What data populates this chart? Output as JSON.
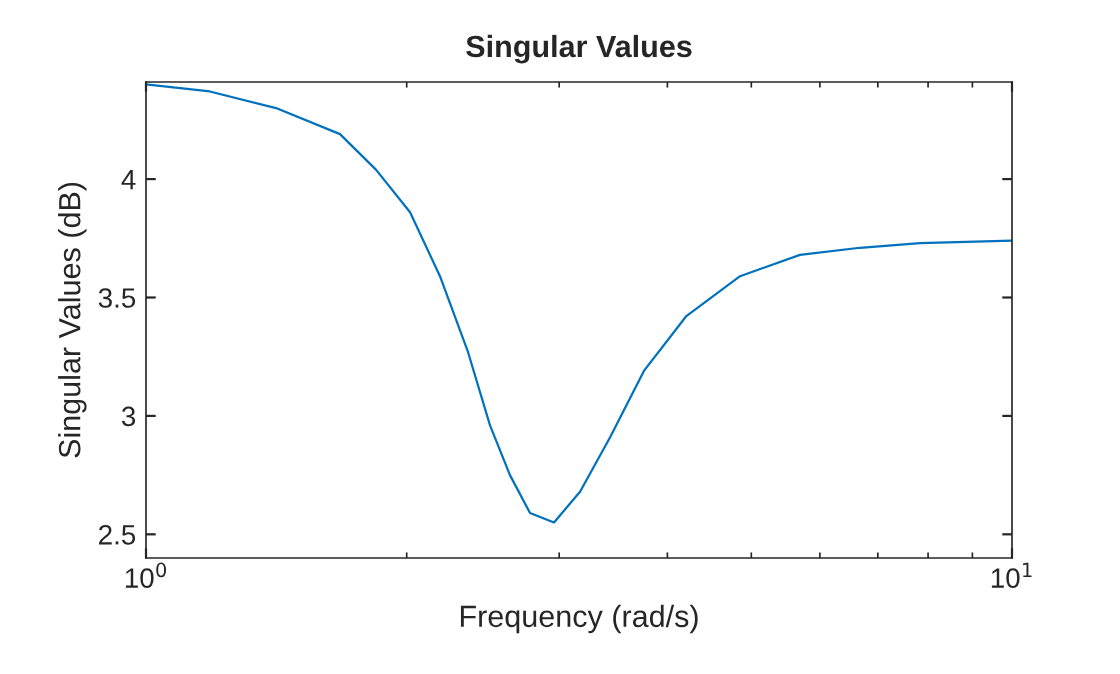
{
  "chart_data": {
    "type": "line",
    "title": "Singular Values",
    "xlabel": "Frequency (rad/s)",
    "ylabel": "Singular Values (dB)",
    "log": "x",
    "x": [
      1,
      1.185,
      1.413,
      1.675,
      1.843,
      2.018,
      2.185,
      2.354,
      2.496,
      2.632,
      2.776,
      2.959,
      3.171,
      3.435,
      3.758,
      4.203,
      4.853,
      5.69,
      6.675,
      7.83,
      10
    ],
    "series": [
      {
        "color": "#0072bd",
        "values": [
          4.4,
          4.37,
          4.3,
          4.19,
          4.04,
          3.86,
          3.59,
          3.27,
          2.96,
          2.75,
          2.59,
          2.55,
          2.68,
          2.91,
          3.19,
          3.42,
          3.59,
          3.68,
          3.71,
          3.73,
          3.74
        ]
      }
    ],
    "xlim": [
      1,
      10
    ],
    "xticks": [
      {
        "value": 1,
        "label": "10$^{0}$"
      },
      {
        "value": 10,
        "label": "10$^{1}$"
      }
    ],
    "ylim": [
      2.4,
      4.41
    ],
    "yticks": [
      2.5,
      3,
      3.5,
      4
    ],
    "grid": false,
    "legend": false
  }
}
